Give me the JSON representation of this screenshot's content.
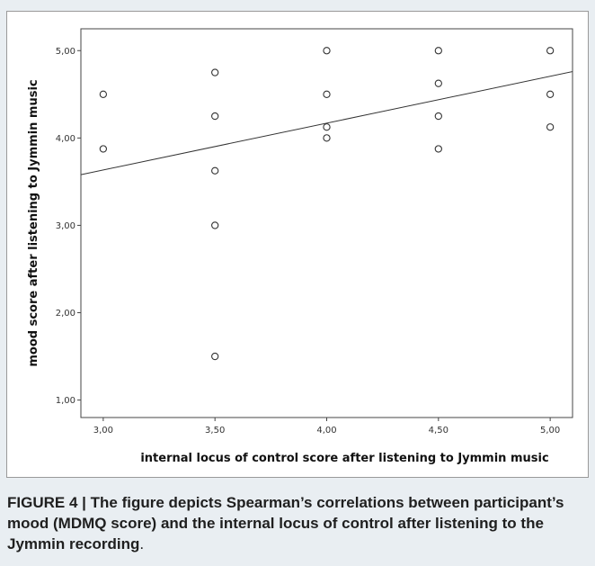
{
  "chart_data": {
    "type": "scatter",
    "xlabel": "internal locus of control score after listening to Jymmin music",
    "ylabel": "mood score after listening to Jymmin music",
    "xlim": [
      2.9,
      5.1
    ],
    "ylim": [
      0.8,
      5.25
    ],
    "x_ticks": [
      "3,00",
      "3,50",
      "4,00",
      "4,50",
      "5,00"
    ],
    "x_tick_values": [
      3.0,
      3.5,
      4.0,
      4.5,
      5.0
    ],
    "y_ticks": [
      "1,00",
      "2,00",
      "3,00",
      "4,00",
      "5,00"
    ],
    "y_tick_values": [
      1.0,
      2.0,
      3.0,
      4.0,
      5.0
    ],
    "points": [
      {
        "x": 3.0,
        "y": 4.5
      },
      {
        "x": 3.0,
        "y": 3.875
      },
      {
        "x": 3.5,
        "y": 4.75
      },
      {
        "x": 3.5,
        "y": 4.25
      },
      {
        "x": 3.5,
        "y": 3.625
      },
      {
        "x": 3.5,
        "y": 3.0
      },
      {
        "x": 3.5,
        "y": 1.5
      },
      {
        "x": 4.0,
        "y": 5.0
      },
      {
        "x": 4.0,
        "y": 4.5
      },
      {
        "x": 4.0,
        "y": 4.125
      },
      {
        "x": 4.0,
        "y": 4.0
      },
      {
        "x": 4.5,
        "y": 5.0
      },
      {
        "x": 4.5,
        "y": 4.625
      },
      {
        "x": 4.5,
        "y": 4.25
      },
      {
        "x": 4.5,
        "y": 3.875
      },
      {
        "x": 5.0,
        "y": 5.0
      },
      {
        "x": 5.0,
        "y": 4.5
      },
      {
        "x": 5.0,
        "y": 4.125
      }
    ],
    "fit_line": {
      "x": [
        2.9,
        5.1
      ],
      "y": [
        3.58,
        4.76
      ]
    },
    "grid": false,
    "marker_color": "#333333",
    "line_color": "#333333"
  },
  "caption": {
    "label": "FIGURE 4 |",
    "text": "The figure depicts Spearman’s correlations between participant’s mood (MDMQ score) and the internal locus of control after listening to the Jymmin recording",
    "end": "."
  }
}
